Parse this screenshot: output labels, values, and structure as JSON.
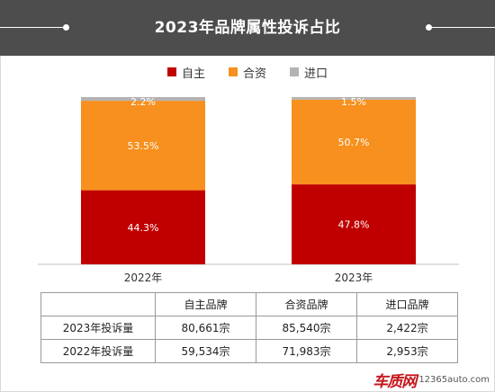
{
  "header": {
    "title": "2023年品牌属性投诉占比"
  },
  "colors": {
    "header_bg": "#4d4d4d",
    "domestic": "#c00000",
    "jv": "#f7901e",
    "import": "#b3b3b3"
  },
  "chart_data": {
    "type": "bar",
    "stacked": true,
    "categories": [
      "2022年",
      "2023年"
    ],
    "series": [
      {
        "name": "自主",
        "values": [
          44.3,
          47.8
        ],
        "labels": [
          "44.3%",
          "47.8%"
        ],
        "color": "#c00000"
      },
      {
        "name": "合资",
        "values": [
          53.5,
          50.7
        ],
        "labels": [
          "53.5%",
          "50.7%"
        ],
        "color": "#f7901e"
      },
      {
        "name": "进口",
        "values": [
          2.2,
          1.5
        ],
        "labels": [
          "2.2%",
          "1.5%"
        ],
        "color": "#b3b3b3"
      }
    ],
    "ylim": [
      0,
      100
    ],
    "legend_position": "top",
    "grid": false
  },
  "table": {
    "headers": [
      "",
      "自主品牌",
      "合资品牌",
      "进口品牌"
    ],
    "rows": [
      {
        "label": "2023年投诉量",
        "cells": [
          "80,661宗",
          "85,540宗",
          "2,422宗"
        ]
      },
      {
        "label": "2022年投诉量",
        "cells": [
          "59,534宗",
          "71,983宗",
          "2,953宗"
        ]
      }
    ]
  },
  "watermark": {
    "logo": "车质网",
    "url": "12365auto.com"
  }
}
